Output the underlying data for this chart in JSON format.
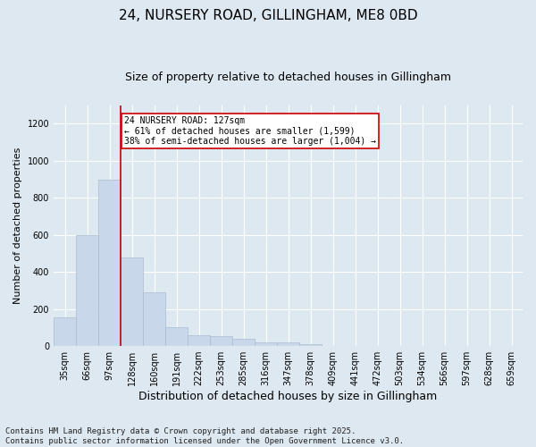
{
  "title1": "24, NURSERY ROAD, GILLINGHAM, ME8 0BD",
  "title2": "Size of property relative to detached houses in Gillingham",
  "xlabel": "Distribution of detached houses by size in Gillingham",
  "ylabel": "Number of detached properties",
  "categories": [
    "35sqm",
    "66sqm",
    "97sqm",
    "128sqm",
    "160sqm",
    "191sqm",
    "222sqm",
    "253sqm",
    "285sqm",
    "316sqm",
    "347sqm",
    "378sqm",
    "409sqm",
    "441sqm",
    "472sqm",
    "503sqm",
    "534sqm",
    "566sqm",
    "597sqm",
    "628sqm",
    "659sqm"
  ],
  "values": [
    155,
    600,
    900,
    480,
    290,
    100,
    60,
    55,
    40,
    20,
    18,
    8,
    0,
    0,
    0,
    0,
    0,
    0,
    0,
    0,
    0
  ],
  "bar_color": "#c8d8ea",
  "bar_edge_color": "#aabcce",
  "vline_index": 2.5,
  "vline_color": "#cc0000",
  "annotation_text": "24 NURSERY ROAD: 127sqm\n← 61% of detached houses are smaller (1,599)\n38% of semi-detached houses are larger (1,004) →",
  "annotation_box_facecolor": "#ffffff",
  "annotation_box_edgecolor": "#cc0000",
  "ylim": [
    0,
    1300
  ],
  "yticks": [
    0,
    200,
    400,
    600,
    800,
    1000,
    1200
  ],
  "plot_bg_color": "#dde8f0",
  "fig_bg_color": "#dde8f0",
  "footer": "Contains HM Land Registry data © Crown copyright and database right 2025.\nContains public sector information licensed under the Open Government Licence v3.0.",
  "title1_fontsize": 11,
  "title2_fontsize": 9,
  "xlabel_fontsize": 9,
  "ylabel_fontsize": 8,
  "tick_fontsize": 7,
  "annot_fontsize": 7,
  "footer_fontsize": 6.5
}
